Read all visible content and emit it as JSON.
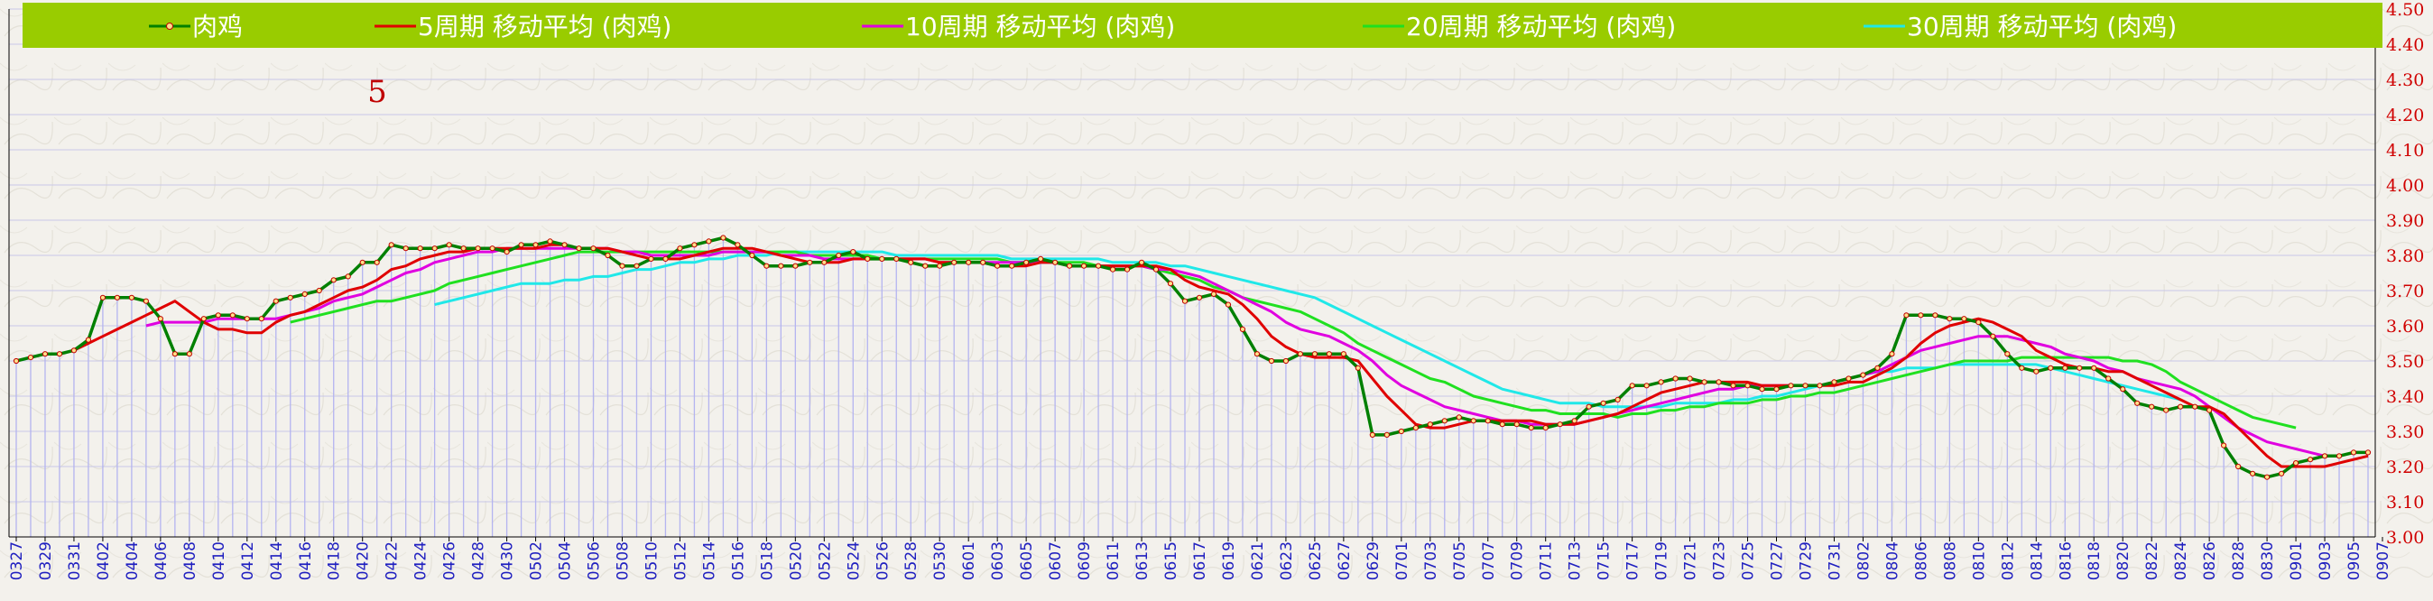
{
  "chart_data": {
    "type": "line",
    "annotation": "5",
    "ylim": [
      3.0,
      4.5
    ],
    "yticks": [
      "3.00",
      "3.10",
      "3.20",
      "3.30",
      "3.40",
      "3.50",
      "3.60",
      "3.70",
      "3.80",
      "3.90",
      "4.00",
      "4.10",
      "4.20",
      "4.30",
      "4.40",
      "4.50"
    ],
    "grid": "horizontal",
    "legend_position": "top",
    "x_tick_labels": [
      "0327",
      "0329",
      "0331",
      "0402",
      "0404",
      "0406",
      "0408",
      "0410",
      "0412",
      "0414",
      "0416",
      "0418",
      "0420",
      "0422",
      "0424",
      "0426",
      "0428",
      "0430",
      "0502",
      "0504",
      "0506",
      "0508",
      "0510",
      "0512",
      "0514",
      "0516",
      "0518",
      "0520",
      "0522",
      "0524",
      "0526",
      "0528",
      "0530",
      "0601",
      "0603",
      "0605",
      "0607",
      "0609",
      "0611",
      "0613",
      "0615",
      "0617",
      "0619",
      "0621",
      "0623",
      "0625",
      "0627",
      "0629",
      "0701",
      "0703",
      "0705",
      "0707",
      "0709",
      "0711",
      "0713",
      "0715",
      "0717",
      "0719",
      "0721",
      "0723",
      "0725",
      "0727",
      "0729",
      "0731",
      "0802",
      "0804",
      "0806",
      "0808",
      "0810",
      "0812",
      "0814",
      "0816",
      "0818",
      "0820",
      "0822",
      "0824",
      "0826",
      "0828",
      "0830",
      "0901",
      "0903",
      "0905",
      "0907"
    ],
    "series": [
      {
        "name": "肉鸡",
        "color": "#008000",
        "marker": "circle",
        "values": [
          3.5,
          3.51,
          3.52,
          3.52,
          3.53,
          3.56,
          3.68,
          3.68,
          3.68,
          3.67,
          3.62,
          3.52,
          3.52,
          3.62,
          3.63,
          3.63,
          3.62,
          3.62,
          3.67,
          3.68,
          3.69,
          3.7,
          3.73,
          3.74,
          3.78,
          3.78,
          3.83,
          3.82,
          3.82,
          3.82,
          3.83,
          3.82,
          3.82,
          3.82,
          3.81,
          3.83,
          3.83,
          3.84,
          3.83,
          3.82,
          3.82,
          3.8,
          3.77,
          3.77,
          3.79,
          3.79,
          3.82,
          3.83,
          3.84,
          3.85,
          3.83,
          3.8,
          3.77,
          3.77,
          3.77,
          3.78,
          3.78,
          3.8,
          3.81,
          3.79,
          3.79,
          3.79,
          3.78,
          3.77,
          3.77,
          3.78,
          3.78,
          3.78,
          3.77,
          3.77,
          3.78,
          3.79,
          3.78,
          3.77,
          3.77,
          3.77,
          3.76,
          3.76,
          3.78,
          3.76,
          3.72,
          3.67,
          3.68,
          3.69,
          3.66,
          3.59,
          3.52,
          3.5,
          3.5,
          3.52,
          3.52,
          3.52,
          3.52,
          3.48,
          3.29,
          3.29,
          3.3,
          3.31,
          3.32,
          3.33,
          3.34,
          3.33,
          3.33,
          3.32,
          3.32,
          3.31,
          3.31,
          3.32,
          3.33,
          3.37,
          3.38,
          3.39,
          3.43,
          3.43,
          3.44,
          3.45,
          3.45,
          3.44,
          3.44,
          3.43,
          3.43,
          3.42,
          3.42,
          3.43,
          3.43,
          3.43,
          3.44,
          3.45,
          3.46,
          3.48,
          3.52,
          3.63,
          3.63,
          3.63,
          3.62,
          3.62,
          3.61,
          3.57,
          3.52,
          3.48,
          3.47,
          3.48,
          3.48,
          3.48,
          3.48,
          3.45,
          3.42,
          3.38,
          3.37,
          3.36,
          3.37,
          3.37,
          3.36,
          3.26,
          3.2,
          3.18,
          3.17,
          3.18,
          3.21,
          3.22,
          3.23,
          3.23,
          3.24,
          3.24
        ]
      },
      {
        "name": "5周期  移动平均 (肉鸡)",
        "color": "#e00000",
        "values": [
          null,
          null,
          null,
          null,
          3.53,
          3.55,
          3.57,
          3.59,
          3.61,
          3.63,
          3.65,
          3.67,
          3.64,
          3.61,
          3.59,
          3.59,
          3.58,
          3.58,
          3.61,
          3.63,
          3.64,
          3.66,
          3.68,
          3.7,
          3.71,
          3.73,
          3.76,
          3.77,
          3.79,
          3.8,
          3.81,
          3.81,
          3.82,
          3.82,
          3.82,
          3.82,
          3.82,
          3.83,
          3.83,
          3.82,
          3.82,
          3.82,
          3.81,
          3.8,
          3.79,
          3.79,
          3.79,
          3.8,
          3.81,
          3.82,
          3.82,
          3.82,
          3.81,
          3.8,
          3.79,
          3.78,
          3.78,
          3.78,
          3.79,
          3.79,
          3.79,
          3.79,
          3.79,
          3.79,
          3.78,
          3.78,
          3.78,
          3.78,
          3.77,
          3.77,
          3.77,
          3.78,
          3.78,
          3.77,
          3.77,
          3.77,
          3.77,
          3.77,
          3.77,
          3.77,
          3.76,
          3.73,
          3.71,
          3.7,
          3.69,
          3.66,
          3.62,
          3.57,
          3.54,
          3.52,
          3.51,
          3.51,
          3.51,
          3.5,
          3.45,
          3.4,
          3.36,
          3.32,
          3.31,
          3.31,
          3.32,
          3.33,
          3.33,
          3.33,
          3.33,
          3.33,
          3.32,
          3.32,
          3.32,
          3.33,
          3.34,
          3.35,
          3.37,
          3.39,
          3.41,
          3.42,
          3.43,
          3.44,
          3.44,
          3.44,
          3.44,
          3.43,
          3.43,
          3.43,
          3.43,
          3.43,
          3.43,
          3.44,
          3.44,
          3.46,
          3.48,
          3.51,
          3.55,
          3.58,
          3.6,
          3.61,
          3.62,
          3.61,
          3.59,
          3.57,
          3.53,
          3.51,
          3.49,
          3.48,
          3.48,
          3.47,
          3.47,
          3.45,
          3.43,
          3.41,
          3.39,
          3.37,
          3.37,
          3.35,
          3.31,
          3.27,
          3.23,
          3.2,
          3.2,
          3.2,
          3.2,
          3.21,
          3.22,
          3.23
        ]
      },
      {
        "name": "10周期  移动平均 (肉鸡)",
        "color": "#e000e0",
        "values": [
          null,
          null,
          null,
          null,
          null,
          null,
          null,
          null,
          null,
          3.6,
          3.61,
          3.61,
          3.61,
          3.61,
          3.62,
          3.62,
          3.62,
          3.62,
          3.62,
          3.63,
          3.64,
          3.65,
          3.67,
          3.68,
          3.69,
          3.71,
          3.73,
          3.75,
          3.76,
          3.78,
          3.79,
          3.8,
          3.81,
          3.81,
          3.82,
          3.82,
          3.82,
          3.82,
          3.82,
          3.82,
          3.82,
          3.82,
          3.81,
          3.81,
          3.8,
          3.8,
          3.8,
          3.8,
          3.8,
          3.81,
          3.81,
          3.81,
          3.81,
          3.8,
          3.8,
          3.8,
          3.79,
          3.79,
          3.79,
          3.79,
          3.79,
          3.79,
          3.79,
          3.79,
          3.78,
          3.78,
          3.78,
          3.78,
          3.78,
          3.78,
          3.78,
          3.78,
          3.78,
          3.77,
          3.77,
          3.77,
          3.77,
          3.77,
          3.77,
          3.76,
          3.76,
          3.75,
          3.74,
          3.72,
          3.7,
          3.68,
          3.66,
          3.64,
          3.61,
          3.59,
          3.58,
          3.57,
          3.55,
          3.53,
          3.5,
          3.46,
          3.43,
          3.41,
          3.39,
          3.37,
          3.36,
          3.35,
          3.34,
          3.33,
          3.33,
          3.32,
          3.32,
          3.32,
          3.32,
          3.33,
          3.34,
          3.35,
          3.36,
          3.37,
          3.38,
          3.39,
          3.4,
          3.41,
          3.42,
          3.42,
          3.43,
          3.43,
          3.43,
          3.43,
          3.43,
          3.43,
          3.44,
          3.45,
          3.46,
          3.47,
          3.49,
          3.51,
          3.53,
          3.54,
          3.55,
          3.56,
          3.57,
          3.57,
          3.57,
          3.56,
          3.55,
          3.54,
          3.52,
          3.51,
          3.5,
          3.48,
          3.47,
          3.45,
          3.44,
          3.43,
          3.42,
          3.4,
          3.37,
          3.34,
          3.31,
          3.29,
          3.27,
          3.26,
          3.25,
          3.24,
          3.23
        ]
      },
      {
        "name": "20周期  移动平均 (肉鸡)",
        "color": "#20e020",
        "values": [
          null,
          null,
          null,
          null,
          null,
          null,
          null,
          null,
          null,
          null,
          null,
          null,
          null,
          null,
          null,
          null,
          null,
          null,
          null,
          3.61,
          3.62,
          3.63,
          3.64,
          3.65,
          3.66,
          3.67,
          3.67,
          3.68,
          3.69,
          3.7,
          3.72,
          3.73,
          3.74,
          3.75,
          3.76,
          3.77,
          3.78,
          3.79,
          3.8,
          3.81,
          3.81,
          3.81,
          3.81,
          3.81,
          3.81,
          3.81,
          3.81,
          3.81,
          3.81,
          3.81,
          3.81,
          3.81,
          3.81,
          3.81,
          3.81,
          3.8,
          3.8,
          3.8,
          3.8,
          3.8,
          3.79,
          3.79,
          3.79,
          3.79,
          3.79,
          3.79,
          3.79,
          3.79,
          3.79,
          3.78,
          3.78,
          3.78,
          3.78,
          3.78,
          3.78,
          3.77,
          3.77,
          3.77,
          3.77,
          3.76,
          3.75,
          3.74,
          3.73,
          3.71,
          3.7,
          3.68,
          3.67,
          3.66,
          3.65,
          3.64,
          3.62,
          3.6,
          3.58,
          3.55,
          3.53,
          3.51,
          3.49,
          3.47,
          3.45,
          3.44,
          3.42,
          3.4,
          3.39,
          3.38,
          3.37,
          3.36,
          3.36,
          3.35,
          3.35,
          3.35,
          3.35,
          3.34,
          3.35,
          3.35,
          3.36,
          3.36,
          3.37,
          3.37,
          3.38,
          3.38,
          3.38,
          3.39,
          3.39,
          3.4,
          3.4,
          3.41,
          3.41,
          3.42,
          3.43,
          3.44,
          3.45,
          3.46,
          3.47,
          3.48,
          3.49,
          3.5,
          3.5,
          3.5,
          3.5,
          3.51,
          3.51,
          3.51,
          3.51,
          3.51,
          3.51,
          3.51,
          3.5,
          3.5,
          3.49,
          3.47,
          3.44,
          3.42,
          3.4,
          3.38,
          3.36,
          3.34,
          3.33,
          3.32,
          3.31
        ]
      },
      {
        "name": "30周期  移动平均 (肉鸡)",
        "color": "#20e8e8",
        "values": [
          null,
          null,
          null,
          null,
          null,
          null,
          null,
          null,
          null,
          null,
          null,
          null,
          null,
          null,
          null,
          null,
          null,
          null,
          null,
          null,
          null,
          null,
          null,
          null,
          null,
          null,
          null,
          null,
          null,
          3.66,
          3.67,
          3.68,
          3.69,
          3.7,
          3.71,
          3.72,
          3.72,
          3.72,
          3.73,
          3.73,
          3.74,
          3.74,
          3.75,
          3.76,
          3.76,
          3.77,
          3.78,
          3.78,
          3.79,
          3.79,
          3.8,
          3.8,
          3.8,
          3.81,
          3.81,
          3.81,
          3.81,
          3.81,
          3.81,
          3.81,
          3.81,
          3.8,
          3.8,
          3.8,
          3.8,
          3.8,
          3.8,
          3.8,
          3.8,
          3.79,
          3.79,
          3.79,
          3.79,
          3.79,
          3.79,
          3.79,
          3.78,
          3.78,
          3.78,
          3.78,
          3.77,
          3.77,
          3.76,
          3.75,
          3.74,
          3.73,
          3.72,
          3.71,
          3.7,
          3.69,
          3.68,
          3.66,
          3.64,
          3.62,
          3.6,
          3.58,
          3.56,
          3.54,
          3.52,
          3.5,
          3.48,
          3.46,
          3.44,
          3.42,
          3.41,
          3.4,
          3.39,
          3.38,
          3.38,
          3.38,
          3.37,
          3.37,
          3.37,
          3.37,
          3.37,
          3.38,
          3.38,
          3.38,
          3.38,
          3.39,
          3.39,
          3.4,
          3.4,
          3.41,
          3.42,
          3.43,
          3.44,
          3.45,
          3.46,
          3.47,
          3.47,
          3.48,
          3.48,
          3.48,
          3.49,
          3.49,
          3.49,
          3.49,
          3.49,
          3.49,
          3.49,
          3.48,
          3.47,
          3.46,
          3.45,
          3.44,
          3.43,
          3.42,
          3.41,
          3.4,
          3.39
        ]
      }
    ]
  }
}
